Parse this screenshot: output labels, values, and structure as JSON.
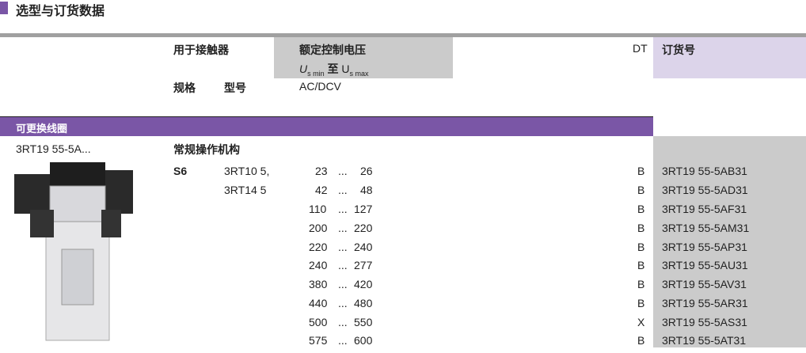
{
  "title": "选型与订货数据",
  "header": {
    "contactor": "用于接触器",
    "rated_voltage": "额定控制电压",
    "us": "U",
    "smin": "s min",
    "to": "至",
    "us2": "U",
    "smax": "s max",
    "dt": "DT",
    "order_no": "订货号",
    "size": "规格",
    "type": "型号",
    "acdc": "AC/DCV"
  },
  "section": "可更换线圈",
  "product": "3RT19 55-5A...",
  "mechanism": "常规操作机构",
  "size_value": "S6",
  "types": [
    "3RT10 5,",
    "3RT14 5"
  ],
  "dots": "...",
  "rows": [
    {
      "min": "23",
      "max": "26",
      "dt": "B",
      "order": "3RT19 55-5AB31"
    },
    {
      "min": "42",
      "max": "48",
      "dt": "B",
      "order": "3RT19 55-5AD31"
    },
    {
      "min": "110",
      "max": "127",
      "dt": "B",
      "order": "3RT19 55-5AF31"
    },
    {
      "min": "200",
      "max": "220",
      "dt": "B",
      "order": "3RT19 55-5AM31"
    },
    {
      "min": "220",
      "max": "240",
      "dt": "B",
      "order": "3RT19 55-5AP31"
    },
    {
      "min": "240",
      "max": "277",
      "dt": "B",
      "order": "3RT19 55-5AU31"
    },
    {
      "min": "380",
      "max": "420",
      "dt": "B",
      "order": "3RT19 55-5AV31"
    },
    {
      "min": "440",
      "max": "480",
      "dt": "B",
      "order": "3RT19 55-5AR31"
    },
    {
      "min": "500",
      "max": "550",
      "dt": "X",
      "order": "3RT19 55-5AS31"
    },
    {
      "min": "575",
      "max": "600",
      "dt": "B",
      "order": "3RT19 55-5AT31"
    }
  ],
  "colors": {
    "accent": "#7a56a6",
    "gray": "#cbcbcb",
    "lavender": "#dcd4ea"
  }
}
